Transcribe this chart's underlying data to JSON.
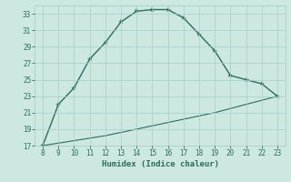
{
  "xlabel": "Humidex (Indice chaleur)",
  "x_upper": [
    8,
    9,
    10,
    11,
    12,
    13,
    14,
    15,
    16,
    17,
    18,
    19,
    20,
    21,
    22,
    23
  ],
  "y_upper": [
    17.0,
    22.0,
    24.0,
    27.5,
    29.5,
    32.0,
    33.3,
    33.5,
    33.5,
    32.5,
    30.5,
    28.5,
    25.5,
    25.0,
    24.5,
    23.0
  ],
  "x_lower": [
    8,
    9,
    10,
    11,
    12,
    13,
    14,
    15,
    16,
    17,
    18,
    19,
    20,
    21,
    22,
    23
  ],
  "y_lower": [
    17.0,
    17.3,
    17.6,
    17.9,
    18.2,
    18.6,
    19.0,
    19.4,
    19.8,
    20.2,
    20.6,
    21.0,
    21.5,
    22.0,
    22.5,
    23.0
  ],
  "line_color": "#2e6b5e",
  "bg_color": "#cce8e0",
  "grid_color": "#a8cfc8",
  "text_color": "#2e6b5e",
  "xlim": [
    7.5,
    23.5
  ],
  "ylim": [
    17,
    34
  ],
  "xticks": [
    8,
    9,
    10,
    11,
    12,
    13,
    14,
    15,
    16,
    17,
    18,
    19,
    20,
    21,
    22,
    23
  ],
  "yticks": [
    17,
    19,
    21,
    23,
    25,
    27,
    29,
    31,
    33
  ]
}
